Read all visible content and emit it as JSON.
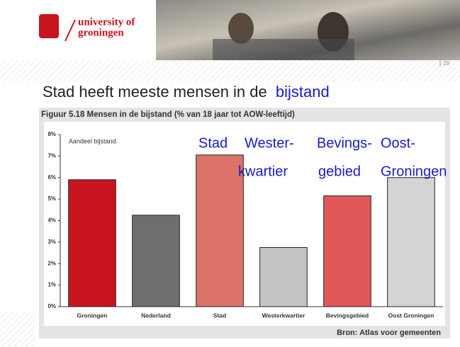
{
  "header": {
    "logo_line1": "university of",
    "logo_line2": "groningen",
    "page_number": "29"
  },
  "slide_title": {
    "text": "Stad heeft meeste mensen in de",
    "highlight": "bijstand"
  },
  "chart_data": {
    "type": "bar",
    "title": "Figuur 5.18 Mensen in de bijstand (% van 18 jaar tot AOW-leeftijd)",
    "y_label": "Aandeel bijstand.",
    "source": "Bron: Atlas voor gemeenten",
    "categories": [
      "Groningen",
      "Nederland",
      "Stad",
      "Westerkwartier",
      "Bevingsgebied",
      "Oost Groningen"
    ],
    "values": [
      5.9,
      4.25,
      7.05,
      2.75,
      5.15,
      6.0
    ],
    "colors": [
      "#c8141e",
      "#6e6e70",
      "#dc7268",
      "#c4c4c4",
      "#e05858",
      "#d4d4d4"
    ],
    "ylim": [
      0,
      8
    ],
    "yticks": [
      {
        "value": 0,
        "label": "0%"
      },
      {
        "value": 1,
        "label": "1%"
      },
      {
        "value": 2,
        "label": "2%"
      },
      {
        "value": 3,
        "label": "3%"
      },
      {
        "value": 4,
        "label": "4%"
      },
      {
        "value": 5,
        "label": "5%"
      },
      {
        "value": 6,
        "label": "6%"
      },
      {
        "value": 7,
        "label": "7%"
      },
      {
        "value": 8,
        "label": "8%"
      }
    ],
    "annotations": [
      "Stad",
      "Wester-",
      "kwartier",
      "Bevings-",
      "gebied",
      "Oost-",
      "Groningen"
    ]
  }
}
